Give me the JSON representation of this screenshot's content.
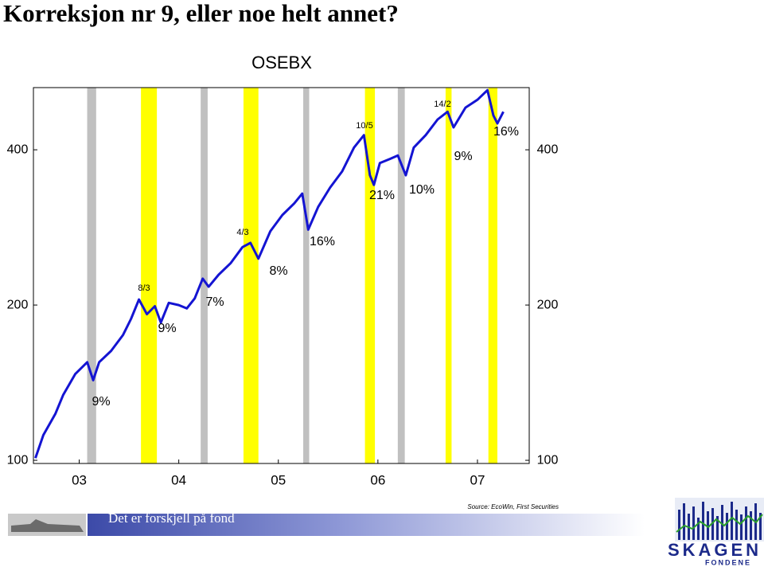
{
  "page": {
    "title": "Korreksjon nr 9, eller noe helt annet?"
  },
  "chart_data": {
    "type": "line",
    "title": "OSEBX",
    "log_scale": true,
    "xlim": [
      2003.04,
      2008.02
    ],
    "xticks": [
      {
        "value": 2003.5,
        "label": "03"
      },
      {
        "value": 2004.5,
        "label": "04"
      },
      {
        "value": 2005.5,
        "label": "05"
      },
      {
        "value": 2006.5,
        "label": "06"
      },
      {
        "value": 2007.5,
        "label": "07"
      }
    ],
    "ylim": [
      98.6,
      528
    ],
    "yticks": [
      100,
      200,
      400
    ],
    "series": [
      {
        "name": "OSEBX",
        "color": "#1414d2",
        "x": [
          2003.06,
          2003.14,
          2003.26,
          2003.34,
          2003.46,
          2003.58,
          2003.64,
          2003.7,
          2003.82,
          2003.94,
          2004.02,
          2004.1,
          2004.18,
          2004.26,
          2004.32,
          2004.4,
          2004.5,
          2004.58,
          2004.66,
          2004.74,
          2004.8,
          2004.9,
          2005.02,
          2005.14,
          2005.22,
          2005.3,
          2005.42,
          2005.54,
          2005.66,
          2005.74,
          2005.8,
          2005.9,
          2006.02,
          2006.14,
          2006.26,
          2006.36,
          2006.42,
          2006.46,
          2006.52,
          2006.62,
          2006.7,
          2006.78,
          2006.86,
          2006.98,
          2007.1,
          2007.2,
          2007.26,
          2007.38,
          2007.5,
          2007.6,
          2007.66,
          2007.7,
          2007.76
        ],
        "values": [
          101,
          112,
          123,
          134,
          147,
          155,
          143,
          155,
          163,
          175,
          188,
          205,
          192,
          199,
          185,
          202,
          200,
          197,
          206,
          225,
          217,
          229,
          241,
          259,
          264,
          246,
          278,
          299,
          315,
          329,
          280,
          310,
          338,
          363,
          404,
          427,
          357,
          342,
          377,
          384,
          390,
          357,
          404,
          427,
          458,
          474,
          442,
          483,
          500,
          522,
          466,
          450,
          474
        ]
      }
    ],
    "bands": [
      {
        "color": "#c0c0c0",
        "x": [
          2003.58,
          2003.67
        ]
      },
      {
        "color": "#ffff00",
        "x": [
          2004.12,
          2004.28
        ]
      },
      {
        "color": "#c0c0c0",
        "x": [
          2004.72,
          2004.79
        ]
      },
      {
        "color": "#ffff00",
        "x": [
          2005.15,
          2005.3
        ]
      },
      {
        "color": "#c0c0c0",
        "x": [
          2005.75,
          2005.81
        ]
      },
      {
        "color": "#ffff00",
        "x": [
          2006.37,
          2006.47
        ]
      },
      {
        "color": "#c0c0c0",
        "x": [
          2006.7,
          2006.77
        ]
      },
      {
        "color": "#ffff00",
        "x": [
          2007.18,
          2007.24
        ]
      },
      {
        "color": "#ffff00",
        "x": [
          2007.61,
          2007.7
        ]
      }
    ],
    "annotations": [
      "9%",
      "8/3",
      "9%",
      "7%",
      "4/3",
      "8%",
      "16%",
      "10/5",
      "21%",
      "10%",
      "14/2",
      "9%",
      "16%"
    ],
    "source": "Source: EcoWin, First Securities"
  },
  "footer": {
    "slogan": "Det er forskjell på fond",
    "logo": "SKAGEN",
    "logo_sub": "FONDENE"
  }
}
